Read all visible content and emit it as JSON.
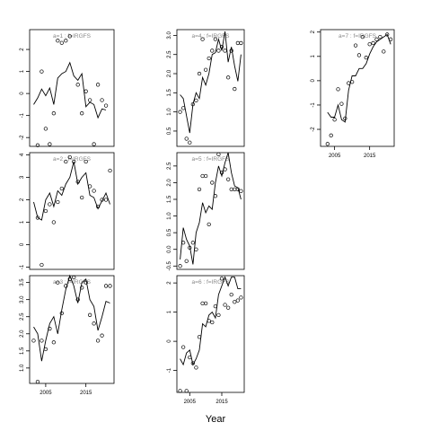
{
  "chart_data": {
    "type": "scatter",
    "xlabel": "Year",
    "panels": [
      {
        "label": "a=1 : f=IRGFS",
        "x_ticks": [],
        "y_ticks": [
          "-2",
          "-1",
          "0",
          "1",
          "2"
        ],
        "ylim": [
          -2.4,
          2.9
        ],
        "obs_x": [
          2003,
          2004,
          2005,
          2006,
          2007,
          2008,
          2009,
          2010,
          2011,
          2013,
          2014,
          2015,
          2016,
          2017,
          2018,
          2019,
          2020
        ],
        "obs_y": [
          -2.35,
          1.0,
          -1.6,
          -2.3,
          -0.9,
          2.4,
          2.3,
          2.4,
          2.6,
          0.4,
          -0.9,
          0.1,
          -0.3,
          -2.3,
          0.4,
          -0.3,
          -0.55
        ],
        "line_x": [
          2002,
          2003,
          2004,
          2005,
          2006,
          2007,
          2008,
          2009,
          2010,
          2011,
          2012,
          2013,
          2014,
          2015,
          2016,
          2017,
          2018,
          2019,
          2020
        ],
        "line_y": [
          -0.5,
          -0.2,
          0.2,
          -0.1,
          0.25,
          -0.5,
          0.7,
          0.9,
          1.0,
          1.4,
          0.8,
          0.6,
          0.9,
          -0.6,
          -0.4,
          -0.5,
          -1.1,
          -0.7,
          -0.75
        ]
      },
      {
        "label": "a=2 : f=IRGFS",
        "x_ticks": [],
        "y_ticks": [
          "-1",
          "0",
          "1",
          "2",
          "3",
          "4"
        ],
        "ylim": [
          -1.1,
          4.1
        ],
        "obs_x": [
          2003,
          2004,
          2005,
          2006,
          2007,
          2008,
          2009,
          2010,
          2011,
          2012,
          2013,
          2014,
          2015,
          2016,
          2017,
          2018,
          2019,
          2020,
          2021
        ],
        "obs_y": [
          1.2,
          -0.9,
          1.5,
          1.8,
          1.0,
          1.9,
          2.5,
          3.7,
          3.9,
          3.7,
          2.8,
          2.1,
          3.7,
          2.6,
          2.4,
          1.7,
          2.0,
          2.0,
          3.3
        ],
        "line_x": [
          2002,
          2003,
          2004,
          2005,
          2006,
          2007,
          2008,
          2009,
          2010,
          2011,
          2012,
          2013,
          2014,
          2015,
          2016,
          2017,
          2018,
          2019,
          2020,
          2021
        ],
        "line_y": [
          1.9,
          1.2,
          1.1,
          2.0,
          2.3,
          1.7,
          2.4,
          2.2,
          2.7,
          3.0,
          3.7,
          2.7,
          3.0,
          3.2,
          2.2,
          2.1,
          1.6,
          1.95,
          2.3,
          1.8
        ]
      },
      {
        "label": "a=3 : f=IRGFS",
        "x_ticks": [
          "2005",
          "2015"
        ],
        "y_ticks": [
          "1.0",
          "1.5",
          "2.0",
          "2.5",
          "3.0",
          "3.5"
        ],
        "ylim": [
          0.55,
          3.7
        ],
        "obs_x": [
          2002,
          2003,
          2004,
          2005,
          2006,
          2007,
          2008,
          2009,
          2010,
          2011,
          2012,
          2013,
          2014,
          2015,
          2016,
          2017,
          2018,
          2019,
          2020,
          2021
        ],
        "obs_y": [
          1.8,
          0.6,
          1.8,
          1.55,
          2.15,
          1.75,
          3.5,
          2.6,
          3.4,
          3.6,
          3.65,
          3.0,
          3.35,
          3.5,
          2.55,
          2.3,
          1.8,
          1.95,
          3.4,
          3.4
        ],
        "line_x": [
          2002,
          2003,
          2004,
          2005,
          2006,
          2007,
          2008,
          2009,
          2010,
          2011,
          2012,
          2013,
          2014,
          2015,
          2016,
          2017,
          2018,
          2019,
          2020,
          2021
        ],
        "line_y": [
          2.2,
          2.0,
          1.2,
          1.8,
          2.3,
          2.5,
          2.0,
          2.7,
          3.3,
          3.7,
          3.4,
          2.9,
          3.5,
          3.6,
          3.0,
          2.8,
          2.1,
          2.5,
          2.95,
          2.9
        ]
      },
      {
        "label": "a=4 : f=IRGFS",
        "x_ticks": [],
        "y_ticks": [
          "0.5",
          "1.0",
          "1.5",
          "2.0",
          "2.5",
          "3.0"
        ],
        "ylim": [
          0.1,
          3.15
        ],
        "obs_x": [
          2002,
          2003,
          2004,
          2005,
          2006,
          2007,
          2008,
          2009,
          2010,
          2011,
          2012,
          2013,
          2014,
          2015,
          2016,
          2017,
          2018,
          2019,
          2020,
          2021
        ],
        "obs_y": [
          1.0,
          1.1,
          0.3,
          0.2,
          1.2,
          1.3,
          2.0,
          2.9,
          2.1,
          2.4,
          2.6,
          2.9,
          2.6,
          2.7,
          2.6,
          1.9,
          2.6,
          1.6,
          2.8,
          2.8
        ],
        "line_x": [
          2002,
          2003,
          2004,
          2005,
          2006,
          2007,
          2008,
          2009,
          2010,
          2011,
          2012,
          2013,
          2014,
          2015,
          2016,
          2017,
          2018,
          2019,
          2020,
          2021
        ],
        "line_y": [
          1.45,
          1.35,
          0.9,
          0.45,
          1.2,
          1.5,
          1.35,
          1.9,
          1.7,
          2.0,
          2.5,
          2.55,
          2.9,
          2.6,
          3.1,
          2.3,
          2.7,
          2.2,
          1.8,
          2.5
        ]
      },
      {
        "label": "a=5 : f=IRGFS",
        "x_ticks": [],
        "y_ticks": [
          "-0.5",
          "0.0",
          "0.5",
          "1.0",
          "1.5",
          "2.0",
          "2.5"
        ],
        "ylim": [
          -0.6,
          2.9
        ],
        "obs_x": [
          2002,
          2003,
          2004,
          2005,
          2006,
          2007,
          2008,
          2009,
          2010,
          2011,
          2012,
          2013,
          2014,
          2015,
          2016,
          2017,
          2018,
          2019,
          2020,
          2021
        ],
        "obs_y": [
          -0.5,
          0.2,
          -0.35,
          0.05,
          0.2,
          0.0,
          1.8,
          2.2,
          2.2,
          0.75,
          2.0,
          1.6,
          2.85,
          2.3,
          2.4,
          2.1,
          1.8,
          1.8,
          1.8,
          1.75
        ],
        "line_x": [
          2002,
          2003,
          2004,
          2005,
          2006,
          2007,
          2008,
          2009,
          2010,
          2011,
          2012,
          2013,
          2014,
          2015,
          2016,
          2017,
          2018,
          2019,
          2020,
          2021
        ],
        "line_y": [
          -0.3,
          0.65,
          0.3,
          0.1,
          -0.45,
          0.5,
          0.8,
          1.4,
          1.1,
          1.3,
          1.2,
          2.0,
          2.5,
          2.2,
          2.6,
          2.9,
          2.3,
          1.9,
          1.85,
          1.5
        ]
      },
      {
        "label": "a=6 : f=IRGFS",
        "x_ticks": [
          "2005",
          "2015"
        ],
        "y_ticks": [
          "-1",
          "0",
          "1",
          "2"
        ],
        "ylim": [
          -1.75,
          2.25
        ],
        "obs_x": [
          2002,
          2003,
          2004,
          2005,
          2006,
          2007,
          2008,
          2009,
          2010,
          2011,
          2012,
          2013,
          2014,
          2015,
          2016,
          2017,
          2018,
          2019,
          2020,
          2021
        ],
        "obs_y": [
          -1.7,
          -0.2,
          -1.7,
          -0.55,
          -0.75,
          -0.9,
          0.15,
          1.3,
          1.3,
          0.7,
          0.65,
          1.2,
          0.9,
          2.15,
          1.25,
          1.15,
          1.6,
          1.35,
          1.4,
          1.5
        ],
        "line_x": [
          2002,
          2003,
          2004,
          2005,
          2006,
          2007,
          2008,
          2009,
          2010,
          2011,
          2012,
          2013,
          2014,
          2015,
          2016,
          2017,
          2018,
          2019,
          2020,
          2021
        ],
        "line_y": [
          -0.6,
          -0.8,
          -0.4,
          -0.3,
          -0.8,
          -0.6,
          -0.3,
          0.6,
          0.5,
          0.9,
          1.0,
          0.8,
          1.6,
          1.9,
          2.2,
          1.9,
          2.2,
          2.2,
          1.8,
          1.8
        ]
      },
      {
        "label": "a=7 : f=IRGFS",
        "x_ticks": [
          "2005",
          "2015"
        ],
        "y_ticks": [
          "-2",
          "-1",
          "0",
          "1",
          "2"
        ],
        "ylim": [
          -2.7,
          2.1
        ],
        "obs_x": [
          2003,
          2004,
          2005,
          2006,
          2007,
          2008,
          2009,
          2010,
          2011,
          2012,
          2013,
          2014,
          2015,
          2016,
          2017,
          2018,
          2019,
          2020,
          2021
        ],
        "obs_y": [
          -2.6,
          -2.25,
          -1.6,
          -0.35,
          -0.95,
          -1.55,
          -0.1,
          -0.05,
          1.45,
          1.05,
          1.8,
          0.95,
          1.5,
          1.55,
          1.7,
          1.8,
          1.2,
          1.9,
          1.7
        ],
        "line_x": [
          2003,
          2004,
          2005,
          2006,
          2007,
          2008,
          2009,
          2010,
          2011,
          2012,
          2013,
          2014,
          2015,
          2016,
          2017,
          2018,
          2019,
          2020,
          2021
        ],
        "line_y": [
          -1.3,
          -1.5,
          -1.5,
          -1.0,
          -1.6,
          -1.7,
          -0.4,
          0.2,
          0.2,
          0.5,
          0.5,
          0.7,
          1.1,
          1.4,
          1.6,
          1.7,
          1.8,
          1.9,
          1.5
        ]
      }
    ]
  }
}
